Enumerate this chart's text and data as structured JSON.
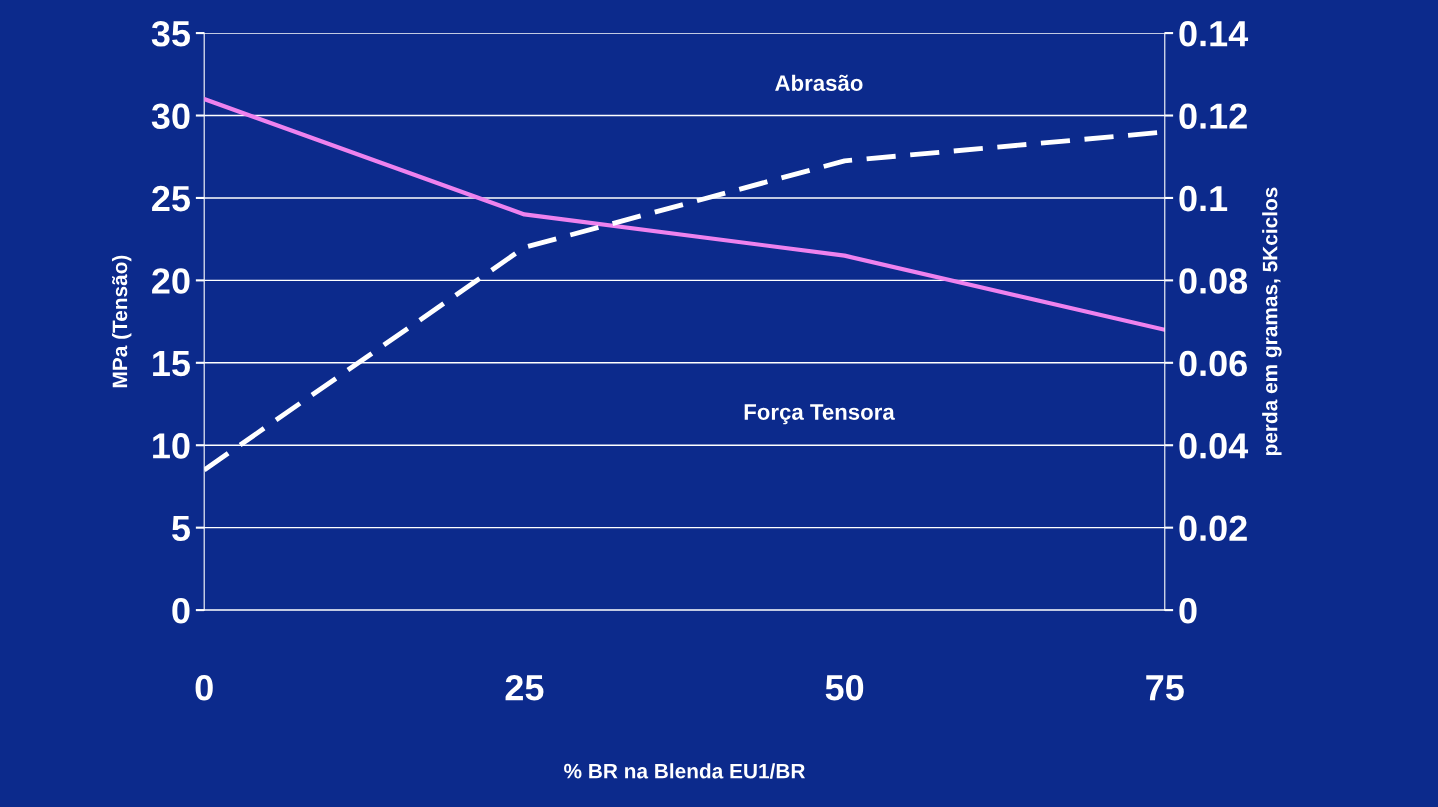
{
  "chart_data": {
    "type": "line",
    "xlabel": "% BR na Blenda EU1/BR",
    "ylabel": "MPa (Tensão)",
    "y2label": "perda em gramas, 5Kciclos",
    "x": [
      0,
      25,
      50,
      75
    ],
    "xlim": [
      0,
      75
    ],
    "xticks": [
      0,
      25,
      50,
      75
    ],
    "ylim": [
      0,
      35
    ],
    "yticks": [
      0,
      5,
      10,
      15,
      20,
      25,
      30,
      35
    ],
    "y2lim": [
      0,
      0.14
    ],
    "y2ticks": [
      0,
      {
        "value": 0.02,
        "label": "0.02"
      },
      {
        "value": 0.04,
        "label": "0.04"
      },
      {
        "value": 0.06,
        "label": "0.06"
      },
      {
        "value": 0.08,
        "label": "0.08"
      },
      {
        "value": 0.1,
        "label": "0.1"
      },
      {
        "value": 0.12,
        "label": "0.12"
      },
      {
        "value": 0.14,
        "label": "0.14"
      }
    ],
    "series": [
      {
        "color": "#ee82ee",
        "values": [
          31,
          24,
          21.5,
          17
        ],
        "line_style": "solid"
      },
      {
        "color": "#ffffff",
        "values": [
          0.034,
          0.088,
          0.109,
          0.116
        ],
        "axis": "y2",
        "line_style": "dashed"
      }
    ],
    "annotations": [
      "Abrasão",
      "Força Tensora"
    ],
    "grid": "y",
    "marker": "none"
  }
}
